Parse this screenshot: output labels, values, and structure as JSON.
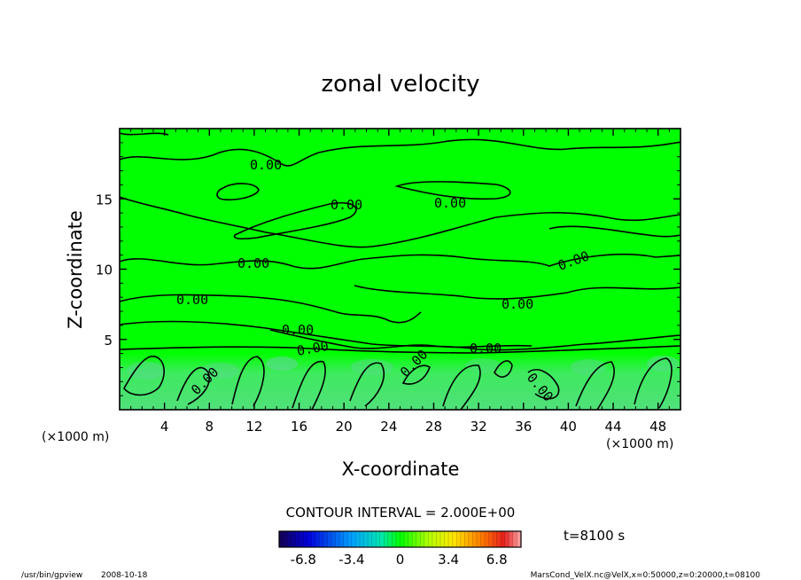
{
  "chart_data": {
    "type": "heatmap",
    "title": "zonal velocity",
    "xlabel": "X-coordinate",
    "ylabel": "Z-coordinate",
    "x_unit": "(×1000 m)",
    "y_unit": "(×1000 m)",
    "xlim": [
      0,
      50
    ],
    "ylim": [
      0,
      20
    ],
    "x_ticks": [
      "4",
      "8",
      "12",
      "16",
      "20",
      "24",
      "28",
      "32",
      "36",
      "40",
      "44",
      "48"
    ],
    "y_ticks": [
      "5",
      "10",
      "15"
    ],
    "contour_interval": "CONTOUR INTERVAL = 2.000E+00",
    "time_label": "t=8100 s",
    "colorbar": {
      "range": [
        -8.5,
        8.5
      ],
      "ticks": [
        "-6.8",
        "-3.4",
        "0",
        "3.4",
        "6.8"
      ]
    },
    "contour_labels": [
      "0.00",
      "0.00",
      "0.00",
      "0.00",
      "0.00",
      "0.00",
      "0.00",
      "0.00",
      "0.00",
      "0.00",
      "0.00",
      "0.00",
      "0.00"
    ],
    "colors": {
      "background_field": "#00ff00",
      "lower_band_field": "#35ee5a",
      "contour_line": "#000000"
    }
  },
  "footer": {
    "program": "/usr/bin/gpview",
    "date": "2008-10-18",
    "source": "MarsCond_VelX.nc@VelX,x=0:50000,z=0:20000,t=08100"
  }
}
